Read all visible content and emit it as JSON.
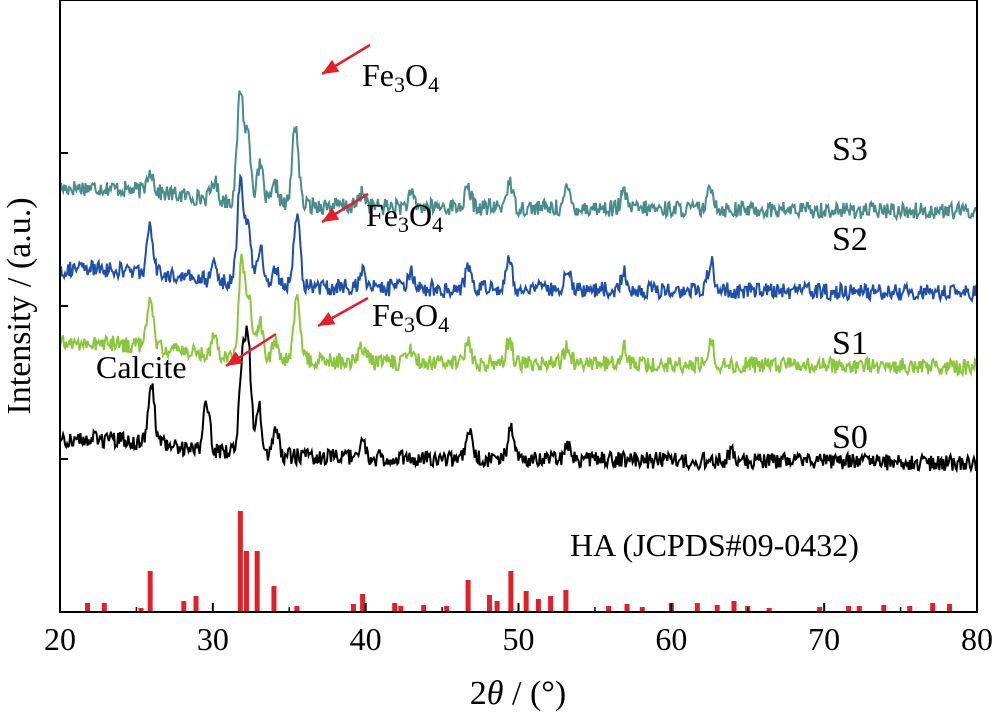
{
  "chart_data": {
    "type": "line",
    "xlabel_main": "2",
    "xlabel_theta": "θ",
    "xlabel_unit": " / (°)",
    "ylabel": "Intensity / (a.u.)",
    "xlim": [
      20,
      80
    ],
    "x_ticks": [
      "20",
      "30",
      "40",
      "50",
      "60",
      "70",
      "80"
    ],
    "x_tick_values": [
      20,
      30,
      40,
      50,
      60,
      70,
      80
    ],
    "grid": false,
    "series": [
      {
        "name": "S3",
        "color": "#4a8c8c",
        "baseline": 0.8,
        "peaks": [
          [
            25.9,
            0.06
          ],
          [
            30.1,
            0.05
          ],
          [
            31.8,
            0.3
          ],
          [
            32.3,
            0.18
          ],
          [
            33.1,
            0.1
          ],
          [
            34.1,
            0.05
          ],
          [
            35.4,
            0.22
          ],
          [
            39.8,
            0.04
          ],
          [
            43.0,
            0.03
          ],
          [
            46.7,
            0.05
          ],
          [
            49.4,
            0.07
          ],
          [
            53.2,
            0.05
          ],
          [
            56.9,
            0.04
          ],
          [
            62.6,
            0.06
          ]
        ]
      },
      {
        "name": "S2",
        "color": "#1f4fa6",
        "baseline": 0.58,
        "peaks": [
          [
            25.9,
            0.12
          ],
          [
            30.1,
            0.05
          ],
          [
            31.8,
            0.28
          ],
          [
            32.3,
            0.16
          ],
          [
            33.1,
            0.1
          ],
          [
            34.1,
            0.05
          ],
          [
            35.5,
            0.2
          ],
          [
            39.8,
            0.05
          ],
          [
            43.0,
            0.04
          ],
          [
            46.7,
            0.05
          ],
          [
            49.4,
            0.08
          ],
          [
            53.2,
            0.05
          ],
          [
            56.9,
            0.05
          ],
          [
            62.6,
            0.08
          ]
        ]
      },
      {
        "name": "S1",
        "color": "#8cc63f",
        "baseline": 0.38,
        "peaks": [
          [
            25.9,
            0.14
          ],
          [
            30.1,
            0.05
          ],
          [
            31.9,
            0.26
          ],
          [
            32.4,
            0.15
          ],
          [
            33.1,
            0.1
          ],
          [
            34.1,
            0.05
          ],
          [
            35.5,
            0.17
          ],
          [
            39.8,
            0.04
          ],
          [
            43.0,
            0.03
          ],
          [
            46.7,
            0.05
          ],
          [
            49.4,
            0.06
          ],
          [
            53.2,
            0.05
          ],
          [
            56.9,
            0.05
          ],
          [
            62.6,
            0.06
          ]
        ]
      },
      {
        "name": "S0",
        "color": "#000000",
        "baseline": 0.12,
        "peaks": [
          [
            26.0,
            0.15
          ],
          [
            29.6,
            0.13
          ],
          [
            31.9,
            0.22
          ],
          [
            32.3,
            0.3
          ],
          [
            33.0,
            0.14
          ],
          [
            34.1,
            0.08
          ],
          [
            39.8,
            0.05
          ],
          [
            46.8,
            0.07
          ],
          [
            49.5,
            0.09
          ],
          [
            53.2,
            0.04
          ],
          [
            64.0,
            0.03
          ]
        ]
      }
    ],
    "reference": {
      "label": "HA (JCPDS#09-0432)",
      "color": "#e0202a",
      "lines": [
        [
          21.8,
          0.08
        ],
        [
          22.9,
          0.08
        ],
        [
          25.3,
          0.03
        ],
        [
          25.9,
          0.4
        ],
        [
          28.1,
          0.1
        ],
        [
          28.9,
          0.15
        ],
        [
          31.8,
          1.0
        ],
        [
          32.2,
          0.6
        ],
        [
          32.9,
          0.6
        ],
        [
          34.0,
          0.25
        ],
        [
          35.5,
          0.05
        ],
        [
          39.2,
          0.07
        ],
        [
          39.8,
          0.17
        ],
        [
          41.9,
          0.08
        ],
        [
          42.3,
          0.05
        ],
        [
          43.8,
          0.06
        ],
        [
          45.3,
          0.05
        ],
        [
          46.7,
          0.31
        ],
        [
          48.1,
          0.16
        ],
        [
          48.6,
          0.1
        ],
        [
          49.5,
          0.4
        ],
        [
          50.5,
          0.2
        ],
        [
          51.3,
          0.12
        ],
        [
          52.1,
          0.15
        ],
        [
          53.1,
          0.21
        ],
        [
          55.9,
          0.05
        ],
        [
          57.1,
          0.07
        ],
        [
          58.1,
          0.04
        ],
        [
          60.0,
          0.08
        ],
        [
          61.7,
          0.08
        ],
        [
          63.0,
          0.06
        ],
        [
          64.1,
          0.1
        ],
        [
          65.0,
          0.05
        ],
        [
          66.4,
          0.03
        ],
        [
          69.7,
          0.04
        ],
        [
          71.6,
          0.05
        ],
        [
          72.3,
          0.05
        ],
        [
          73.9,
          0.06
        ],
        [
          75.6,
          0.05
        ],
        [
          77.1,
          0.08
        ],
        [
          78.2,
          0.07
        ]
      ]
    },
    "annotations": {
      "fe3o4_label_main": "Fe",
      "fe3o4_label_sub1": "3",
      "fe3o4_label_o": "O",
      "fe3o4_label_sub2": "4",
      "calcite_label": "Calcite"
    },
    "arrow_color": "#e0202a"
  }
}
